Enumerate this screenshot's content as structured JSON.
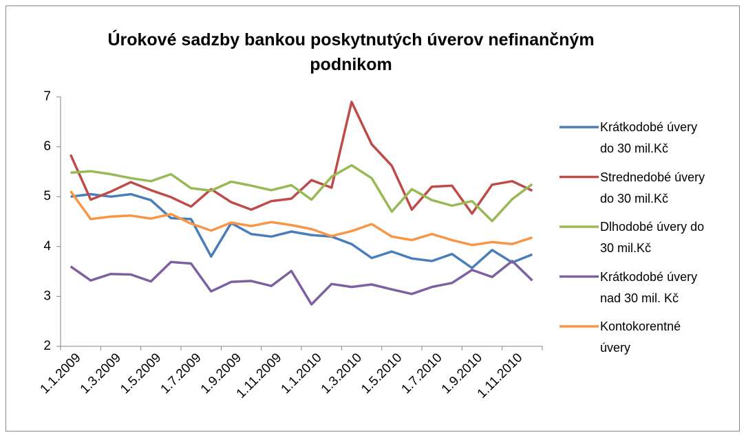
{
  "chart_data": {
    "type": "line",
    "title": "Úrokové sadzby bankou poskytnutých úverov nefinančným podnikom",
    "categories": [
      "1.1.2009",
      null,
      "1.3.2009",
      null,
      "1.5.2009",
      null,
      "1.7.2009",
      null,
      "1.9.2009",
      null,
      "1.11.2009",
      null,
      "1.1.2010",
      null,
      "1.3.2010",
      null,
      "1.5.2010",
      null,
      "1.7.2010",
      null,
      "1.9.2010",
      null,
      "1.11.2010",
      null
    ],
    "series": [
      {
        "name": "Krátkodobé úvery do 30 mil.Kč",
        "color": "#4a7ebb",
        "values": [
          5.0,
          5.05,
          5.0,
          5.05,
          4.93,
          4.57,
          4.55,
          3.8,
          4.47,
          4.25,
          4.2,
          4.3,
          4.23,
          4.2,
          4.05,
          3.77,
          3.9,
          3.76,
          3.71,
          3.85,
          3.57,
          3.93,
          3.68,
          3.84
        ]
      },
      {
        "name": "Strednedobé úvery do 30 mil.Kč",
        "color": "#be4b48",
        "values": [
          5.84,
          4.94,
          5.1,
          5.29,
          5.13,
          4.99,
          4.8,
          5.15,
          4.89,
          4.74,
          4.91,
          4.96,
          5.33,
          5.18,
          6.9,
          6.05,
          5.62,
          4.74,
          5.2,
          5.22,
          4.66,
          5.24,
          5.31,
          5.12
        ]
      },
      {
        "name": "Dlhodobé úvery do 30 mil.Kč",
        "color": "#98b954",
        "values": [
          5.48,
          5.51,
          5.45,
          5.37,
          5.31,
          5.45,
          5.17,
          5.12,
          5.3,
          5.22,
          5.13,
          5.23,
          4.94,
          5.4,
          5.63,
          5.37,
          4.7,
          5.15,
          4.93,
          4.82,
          4.91,
          4.51,
          4.95,
          5.25
        ]
      },
      {
        "name": "Krátkodobé úvery nad 30 mil. Kč",
        "color": "#7d60a0",
        "values": [
          3.6,
          3.32,
          3.45,
          3.44,
          3.3,
          3.69,
          3.66,
          3.1,
          3.29,
          3.31,
          3.21,
          3.51,
          2.84,
          3.25,
          3.19,
          3.24,
          3.14,
          3.05,
          3.19,
          3.27,
          3.53,
          3.39,
          3.71,
          3.32
        ]
      },
      {
        "name": "Kontokorentné úvery",
        "color": "#f79646",
        "values": [
          5.11,
          4.55,
          4.6,
          4.62,
          4.56,
          4.65,
          4.46,
          4.32,
          4.48,
          4.41,
          4.49,
          4.43,
          4.35,
          4.21,
          4.31,
          4.45,
          4.2,
          4.13,
          4.25,
          4.13,
          4.03,
          4.09,
          4.05,
          4.18
        ]
      }
    ],
    "ylim": [
      2,
      7
    ],
    "yticks": [
      2,
      3,
      4,
      5,
      6,
      7
    ],
    "grid": false,
    "legend": "right"
  }
}
